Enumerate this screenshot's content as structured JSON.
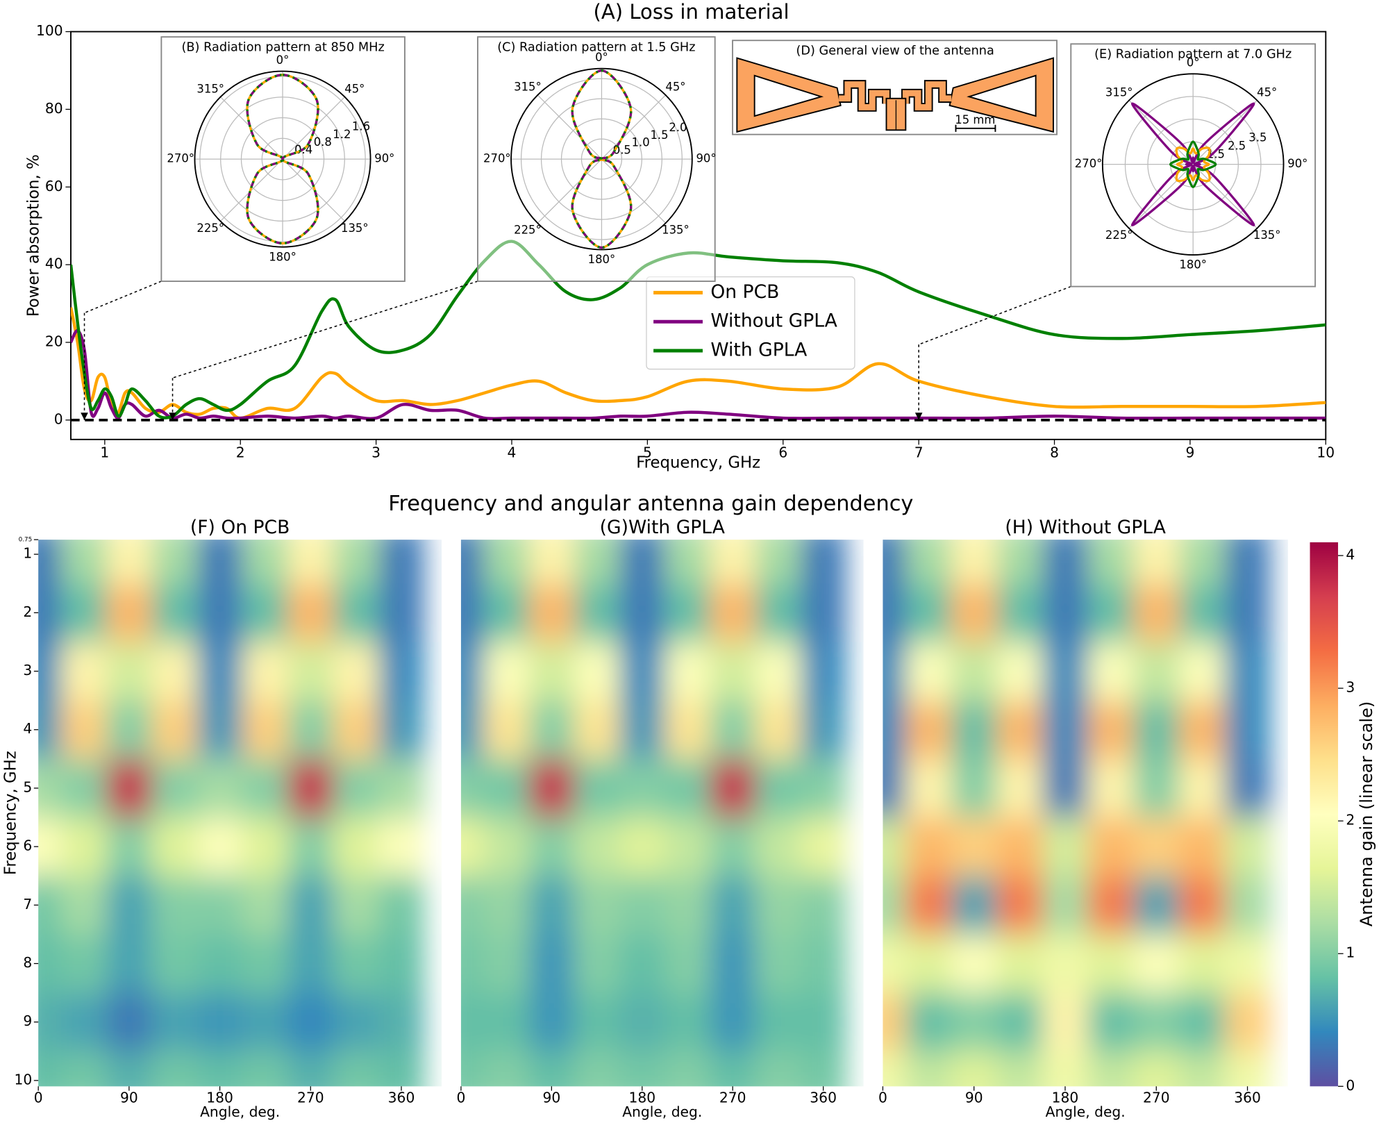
{
  "chart_data": [
    {
      "type": "line",
      "title": "(A) Loss in material",
      "xlabel": "Frequency, GHz",
      "ylabel": "Power absorption, %",
      "x": [
        0.75,
        0.8,
        0.85,
        0.9,
        0.95,
        1.0,
        1.05,
        1.1,
        1.15,
        1.2,
        1.3,
        1.4,
        1.5,
        1.6,
        1.7,
        1.8,
        1.9,
        2.0,
        2.2,
        2.4,
        2.6,
        2.7,
        2.8,
        3.0,
        3.2,
        3.4,
        3.6,
        3.8,
        4.0,
        4.2,
        4.4,
        4.6,
        4.8,
        5.0,
        5.3,
        5.6,
        6.0,
        6.4,
        6.7,
        7.0,
        7.5,
        8.0,
        8.5,
        9.0,
        9.5,
        10
      ],
      "series": [
        {
          "name": "On PCB",
          "color": "#ffa500",
          "values": [
            29,
            20,
            8,
            5,
            11,
            11,
            4,
            2,
            7,
            7,
            3,
            2,
            4,
            2,
            1.5,
            3,
            3,
            0.5,
            3,
            3,
            11,
            12,
            9,
            5,
            5,
            4,
            5,
            7,
            9,
            10,
            7,
            5,
            5,
            6,
            10,
            10,
            8,
            8.5,
            14.5,
            10,
            6,
            3.5,
            3.5,
            3.5,
            3.5,
            4.5
          ]
        },
        {
          "name": "Without GPLA",
          "color": "#800080",
          "values": [
            20,
            23,
            18,
            2,
            3,
            7,
            3,
            0.5,
            4,
            4,
            1,
            2.5,
            0.5,
            1.5,
            0.5,
            1,
            0.5,
            0.5,
            1,
            0.5,
            1,
            0.5,
            1,
            0.5,
            4,
            2.5,
            2.5,
            0.5,
            0.5,
            0.5,
            0.5,
            0.5,
            1,
            1,
            2,
            1.5,
            0.5,
            0.5,
            0.5,
            0.5,
            0.5,
            1,
            0.5,
            0.5,
            0.5,
            0.5
          ]
        },
        {
          "name": "With GPLA",
          "color": "#008000",
          "values": [
            40,
            25,
            12,
            3,
            5,
            8,
            6,
            1,
            4,
            8,
            5,
            1,
            1,
            4,
            5.5,
            4,
            2.5,
            4,
            10,
            14,
            28,
            31,
            24,
            18,
            18,
            22,
            32,
            41,
            46,
            40,
            33,
            31,
            34,
            40,
            43,
            42,
            41,
            40.5,
            38,
            33,
            27,
            22,
            21,
            22,
            23,
            24.5
          ]
        }
      ],
      "xlim": [
        0.75,
        10
      ],
      "xticks": [
        1,
        2,
        3,
        4,
        5,
        6,
        7,
        8,
        9,
        10
      ],
      "ylim": [
        -5,
        100
      ],
      "yticks": [
        0,
        20,
        40,
        60,
        80,
        100
      ],
      "reference_line": 0,
      "annotation_x": [
        0.85,
        1.5,
        7
      ],
      "legend": "center"
    },
    {
      "type": "polar",
      "title": "(B) Radiation pattern at 850 MHz",
      "theta": [
        0,
        30,
        60,
        90,
        120,
        150,
        180,
        210,
        240,
        270,
        300,
        330
      ],
      "thetaticks": [
        {
          "value": 0,
          "label": "0°"
        },
        {
          "value": 45,
          "label": "45°"
        },
        {
          "value": 90,
          "label": "90°"
        },
        {
          "value": 135,
          "label": "135°"
        },
        {
          "value": 180,
          "label": "180°"
        },
        {
          "value": 225,
          "label": "225°"
        },
        {
          "value": 270,
          "label": "270°"
        },
        {
          "value": 315,
          "label": "315°"
        }
      ],
      "rlim": [
        0,
        1.7
      ],
      "rticks": [
        0.4,
        0.8,
        1.2,
        1.6
      ],
      "series": [
        {
          "color": "#ffa500",
          "style": "solid",
          "values": [
            1.63,
            1.32,
            0.57,
            0,
            0.57,
            1.32,
            1.63,
            1.32,
            0.57,
            0,
            0.57,
            1.32
          ]
        },
        {
          "color": "#800080",
          "style": "dashed",
          "values": [
            1.63,
            1.32,
            0.57,
            0,
            0.57,
            1.32,
            1.63,
            1.32,
            0.57,
            0,
            0.57,
            1.32
          ]
        },
        {
          "color": "#008000",
          "style": "dotted",
          "values": [
            1.63,
            1.32,
            0.57,
            0,
            0.57,
            1.32,
            1.63,
            1.32,
            0.57,
            0,
            0.57,
            1.32
          ]
        }
      ]
    },
    {
      "type": "polar",
      "title": "(C) Radiation pattern at 1.5 GHz",
      "theta": [
        0,
        30,
        60,
        90,
        120,
        150,
        180,
        210,
        240,
        270,
        300,
        330
      ],
      "thetaticks": [
        {
          "value": 0,
          "label": "0°"
        },
        {
          "value": 45,
          "label": "45°"
        },
        {
          "value": 90,
          "label": "90°"
        },
        {
          "value": 135,
          "label": "135°"
        },
        {
          "value": 180,
          "label": "180°"
        },
        {
          "value": 225,
          "label": "225°"
        },
        {
          "value": 270,
          "label": "270°"
        },
        {
          "value": 315,
          "label": "315°"
        }
      ],
      "rlim": [
        0,
        2.25
      ],
      "rticks": [
        0.5,
        {
          "value": 1,
          "label": "1.0"
        },
        1.5,
        {
          "value": 2,
          "label": "2.0"
        }
      ],
      "series": [
        {
          "color": "#ffa500",
          "style": "solid",
          "values": [
            2.2,
            1.45,
            0.35,
            0,
            0.35,
            1.45,
            2.2,
            1.45,
            0.35,
            0,
            0.35,
            1.45
          ]
        },
        {
          "color": "#800080",
          "style": "dashed",
          "values": [
            2.2,
            1.45,
            0.35,
            0,
            0.35,
            1.45,
            2.2,
            1.45,
            0.35,
            0,
            0.35,
            1.45
          ]
        },
        {
          "color": "#008000",
          "style": "dotted",
          "values": [
            2.2,
            1.45,
            0.35,
            0,
            0.35,
            1.45,
            2.2,
            1.45,
            0.35,
            0,
            0.35,
            1.45
          ]
        }
      ]
    },
    {
      "type": "polar",
      "title": "(E) Radiation pattern at 7.0 GHz",
      "theta": [
        0,
        15,
        30,
        45,
        60,
        75,
        90,
        105,
        120,
        135,
        150,
        165,
        180,
        195,
        210,
        225,
        240,
        255,
        270,
        285,
        300,
        315,
        330,
        345
      ],
      "thetaticks": [
        {
          "value": 0,
          "label": "0°"
        },
        {
          "value": 45,
          "label": "45°"
        },
        {
          "value": 90,
          "label": "90°"
        },
        {
          "value": 135,
          "label": "135°"
        },
        {
          "value": 180,
          "label": "180°"
        },
        {
          "value": 225,
          "label": "225°"
        },
        {
          "value": 270,
          "label": "270°"
        },
        {
          "value": 315,
          "label": "315°"
        }
      ],
      "rlim": [
        0.5,
        4.5
      ],
      "rticks": [
        1.5,
        2.5,
        3.5
      ],
      "series": [
        {
          "color": "#800080",
          "style": "solid",
          "values": [
            0.8,
            0.6,
            1.6,
            4.3,
            1.6,
            0.6,
            0.8,
            0.6,
            1.6,
            4.3,
            1.6,
            0.6,
            0.8,
            0.6,
            1.6,
            4.3,
            1.6,
            0.6,
            0.8,
            0.6,
            1.6,
            4.3,
            1.6,
            0.6
          ]
        },
        {
          "color": "#ffa500",
          "style": "solid",
          "values": [
            1.2,
            1.0,
            1.3,
            1.5,
            1.3,
            1.0,
            1.2,
            1.0,
            1.3,
            1.5,
            1.3,
            1.0,
            1.2,
            1.0,
            1.3,
            1.5,
            1.3,
            1.0,
            1.2,
            1.0,
            1.3,
            1.5,
            1.3,
            1.0
          ]
        },
        {
          "color": "#008000",
          "style": "solid",
          "values": [
            1.5,
            1.2,
            1.0,
            0.8,
            1.0,
            1.2,
            1.5,
            1.2,
            1.0,
            0.8,
            1.0,
            1.2,
            1.5,
            1.2,
            1.0,
            0.8,
            1.0,
            1.2,
            1.5,
            1.2,
            1.0,
            0.8,
            1.0,
            1.2
          ]
        }
      ]
    },
    {
      "type": "heatmap",
      "title": "(F) On PCB",
      "xlabel": "Angle, deg.",
      "ylabel": "Frequency, GHz",
      "x": [
        0,
        45,
        90,
        135,
        180,
        225,
        270,
        315,
        360
      ],
      "y": [
        1,
        2,
        3,
        4,
        5,
        6,
        7,
        8,
        9,
        10
      ],
      "z": [
        [
          0.3,
          1.2,
          2.2,
          1.2,
          0.3,
          1.2,
          2.2,
          1.2,
          0.3
        ],
        [
          0.3,
          0.8,
          2.8,
          0.8,
          0.3,
          0.8,
          2.8,
          0.8,
          0.3
        ],
        [
          0.4,
          2.2,
          1.5,
          2.2,
          0.4,
          2.2,
          1.5,
          2.2,
          0.4
        ],
        [
          0.5,
          2.6,
          1.0,
          2.6,
          0.5,
          2.6,
          1.0,
          2.6,
          0.5
        ],
        [
          1.2,
          1.0,
          3.8,
          1.0,
          1.2,
          1.0,
          3.8,
          1.0,
          1.2
        ],
        [
          2.0,
          1.6,
          1.0,
          1.6,
          2.0,
          1.6,
          1.0,
          1.6,
          2.0
        ],
        [
          0.9,
          1.2,
          0.6,
          1.0,
          1.0,
          1.2,
          0.6,
          1.2,
          0.9
        ],
        [
          0.8,
          0.9,
          0.6,
          0.9,
          0.8,
          0.9,
          0.6,
          0.9,
          0.8
        ],
        [
          0.7,
          0.6,
          0.3,
          0.6,
          0.5,
          0.6,
          0.4,
          0.6,
          0.7
        ],
        [
          0.8,
          0.9,
          0.7,
          0.9,
          0.8,
          0.9,
          0.7,
          0.9,
          0.8
        ]
      ],
      "xlim": [
        0,
        400
      ],
      "xticks": [
        0,
        90,
        180,
        270,
        360
      ],
      "ylim": [
        0.75,
        10.1
      ],
      "yticks": [
        0.75,
        1,
        2,
        3,
        4,
        5,
        6,
        7,
        8,
        9,
        10
      ]
    },
    {
      "type": "heatmap",
      "title": "(G)With GPLA",
      "xlabel": "Angle, deg.",
      "x": [
        0,
        45,
        90,
        135,
        180,
        225,
        270,
        315,
        360
      ],
      "y": [
        1,
        2,
        3,
        4,
        5,
        6,
        7,
        8,
        9,
        10
      ],
      "z": [
        [
          0.3,
          1.2,
          2.2,
          1.2,
          0.3,
          1.2,
          2.2,
          1.2,
          0.3
        ],
        [
          0.3,
          0.8,
          2.8,
          0.8,
          0.3,
          0.8,
          2.8,
          0.8,
          0.3
        ],
        [
          0.4,
          2.0,
          1.5,
          2.0,
          0.4,
          2.0,
          1.5,
          2.0,
          0.4
        ],
        [
          0.5,
          2.4,
          1.0,
          2.4,
          0.5,
          2.4,
          1.0,
          2.4,
          0.5
        ],
        [
          1.0,
          0.9,
          3.8,
          0.9,
          1.0,
          0.9,
          3.8,
          0.9,
          1.0
        ],
        [
          1.7,
          1.4,
          1.0,
          1.4,
          1.6,
          1.4,
          1.0,
          1.4,
          1.7
        ],
        [
          1.0,
          1.1,
          0.6,
          1.1,
          1.0,
          1.1,
          0.6,
          1.1,
          1.0
        ],
        [
          0.9,
          1.0,
          0.5,
          1.0,
          0.8,
          1.0,
          0.5,
          1.0,
          0.9
        ],
        [
          0.8,
          0.8,
          0.5,
          0.8,
          0.7,
          0.8,
          0.5,
          0.8,
          0.8
        ],
        [
          0.9,
          1.0,
          0.8,
          1.0,
          0.9,
          1.0,
          0.8,
          1.0,
          0.9
        ]
      ],
      "xlim": [
        0,
        400
      ],
      "xticks": [
        0,
        90,
        180,
        270,
        360
      ],
      "ylim": [
        0.75,
        10.1
      ]
    },
    {
      "type": "heatmap",
      "title": "(H) Without GPLA",
      "xlabel": "Angle, deg.",
      "x": [
        0,
        45,
        90,
        135,
        180,
        225,
        270,
        315,
        360
      ],
      "y": [
        1,
        2,
        3,
        4,
        5,
        6,
        7,
        8,
        9,
        10
      ],
      "z": [
        [
          0.3,
          1.2,
          2.2,
          1.2,
          0.3,
          1.2,
          2.2,
          1.2,
          0.3
        ],
        [
          0.3,
          0.8,
          2.8,
          0.8,
          0.3,
          0.8,
          2.8,
          0.8,
          0.3
        ],
        [
          0.4,
          2.0,
          1.4,
          2.0,
          0.4,
          2.0,
          1.4,
          2.0,
          0.4
        ],
        [
          0.4,
          2.8,
          0.8,
          2.8,
          0.4,
          2.8,
          0.8,
          2.8,
          0.4
        ],
        [
          0.3,
          2.2,
          1.0,
          2.2,
          0.3,
          2.2,
          1.0,
          2.2,
          0.3
        ],
        [
          1.5,
          2.8,
          2.6,
          2.8,
          1.5,
          2.8,
          2.6,
          2.8,
          1.5
        ],
        [
          1.2,
          3.2,
          0.6,
          3.2,
          1.2,
          3.2,
          0.6,
          3.2,
          1.2
        ],
        [
          1.8,
          1.6,
          2.0,
          1.6,
          1.8,
          1.6,
          2.0,
          1.6,
          1.8
        ],
        [
          2.6,
          0.8,
          1.0,
          0.8,
          2.2,
          0.8,
          1.0,
          0.8,
          2.6
        ],
        [
          1.8,
          1.4,
          1.6,
          1.4,
          1.8,
          1.4,
          1.6,
          1.4,
          1.8
        ]
      ],
      "xlim": [
        0,
        400
      ],
      "xticks": [
        0,
        90,
        180,
        270,
        360
      ],
      "ylim": [
        0.75,
        10.1
      ]
    }
  ],
  "diagram": {
    "title": "(D) General view of the antenna",
    "scale_label": "15 mm"
  },
  "heatmap_title": "Frequency and angular antenna gain dependency",
  "colorbar": {
    "label": "Antenna gain (linear scale)",
    "lim": [
      0,
      4.1
    ],
    "ticks": [
      0,
      1,
      2,
      3,
      4
    ],
    "colormap": [
      "#5e4fa2",
      "#3288bd",
      "#66c2a5",
      "#abdda4",
      "#e6f598",
      "#ffffbf",
      "#fee08b",
      "#fdae61",
      "#f46d43",
      "#d53e4f",
      "#9e0142"
    ]
  }
}
